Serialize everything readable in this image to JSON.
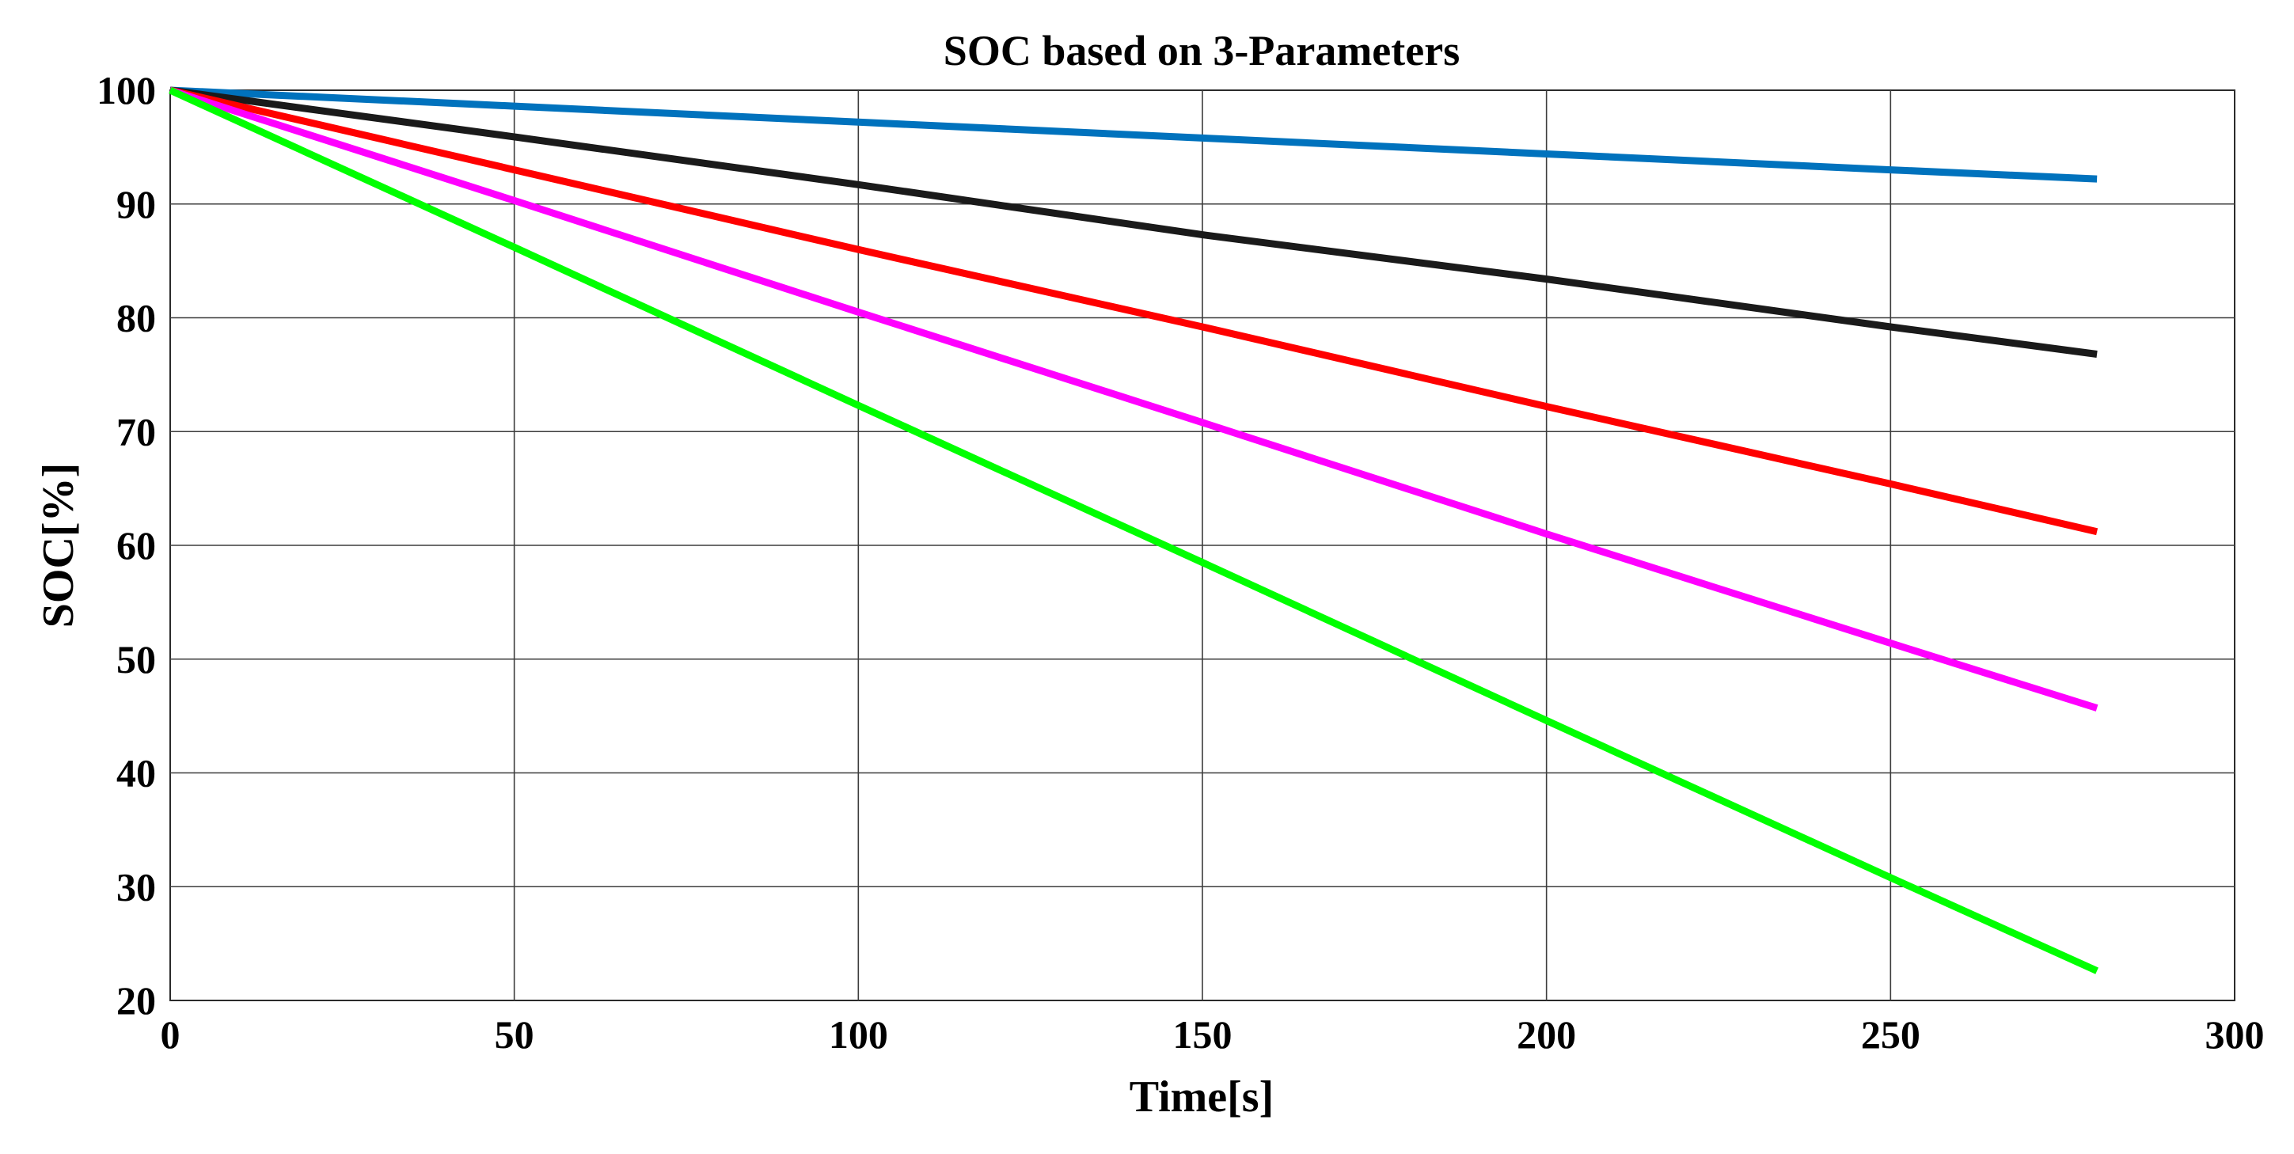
{
  "chart_data": {
    "type": "line",
    "title": "SOC based on 3-Parameters",
    "xlabel": "Time[s]",
    "ylabel": "SOC[%]",
    "xlim": [
      0,
      300
    ],
    "ylim": [
      20,
      100
    ],
    "xticks": [
      "0",
      "50",
      "100",
      "150",
      "200",
      "250",
      "300"
    ],
    "yticks": [
      "20",
      "30",
      "40",
      "50",
      "60",
      "70",
      "80",
      "90",
      "100"
    ],
    "grid": true,
    "x": [
      0,
      280
    ],
    "series": [
      {
        "name": "blue",
        "color": "#0072BD",
        "x": [
          0,
          50,
          100,
          150,
          200,
          250,
          280
        ],
        "values": [
          100,
          98.6,
          97.2,
          95.8,
          94.4,
          93.0,
          92.2
        ]
      },
      {
        "name": "black",
        "color": "#1a1a1a",
        "x": [
          0,
          50,
          100,
          150,
          200,
          250,
          280
        ],
        "values": [
          100,
          95.9,
          91.7,
          87.3,
          83.4,
          79.2,
          76.8
        ]
      },
      {
        "name": "red",
        "color": "#ff0000",
        "x": [
          0,
          50,
          100,
          150,
          200,
          250,
          280
        ],
        "values": [
          100,
          93.0,
          86.0,
          79.2,
          72.2,
          65.4,
          61.2
        ]
      },
      {
        "name": "magenta",
        "color": "#ff00ff",
        "x": [
          0,
          50,
          100,
          150,
          200,
          250,
          280
        ],
        "values": [
          100,
          90.3,
          80.5,
          70.8,
          61.0,
          51.4,
          45.7
        ]
      },
      {
        "name": "green",
        "color": "#00ff00",
        "x": [
          0,
          50,
          100,
          150,
          200,
          250,
          280
        ],
        "values": [
          100,
          86.2,
          72.3,
          58.5,
          44.6,
          30.8,
          22.6
        ]
      }
    ]
  }
}
